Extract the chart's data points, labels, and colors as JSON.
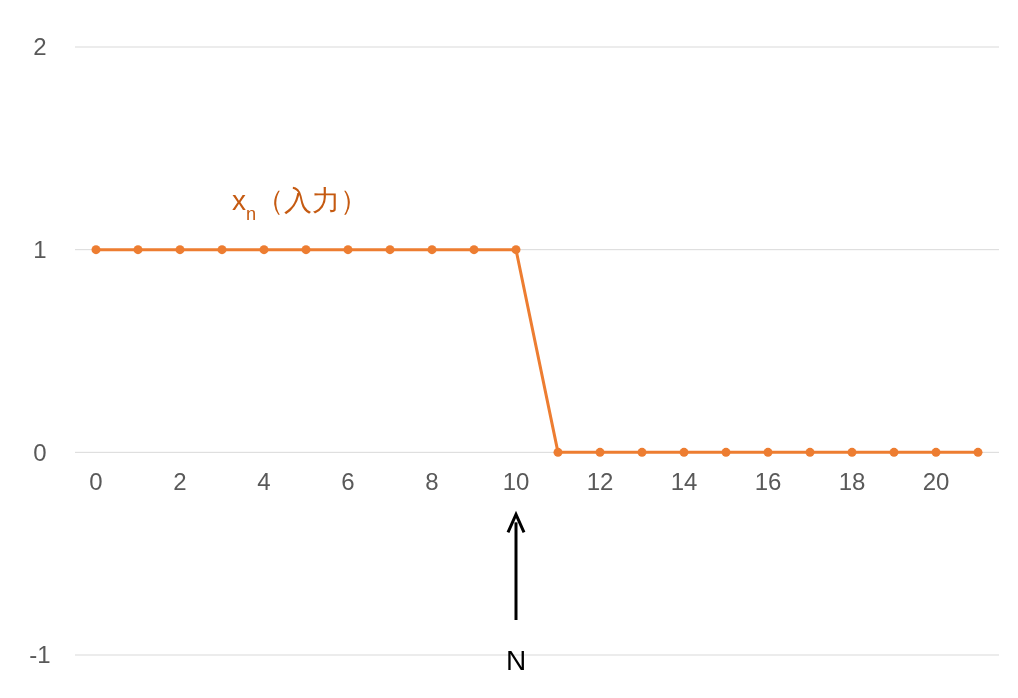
{
  "chart_data": {
    "type": "line",
    "x": [
      0,
      1,
      2,
      3,
      4,
      5,
      6,
      7,
      8,
      9,
      10,
      11,
      12,
      13,
      14,
      15,
      16,
      17,
      18,
      19,
      20,
      21
    ],
    "series": [
      {
        "name": "x$_{n}$（入力）",
        "color": "#ed7d31",
        "values": [
          1,
          1,
          1,
          1,
          1,
          1,
          1,
          1,
          1,
          1,
          1,
          0,
          0,
          0,
          0,
          0,
          0,
          0,
          0,
          0,
          0,
          0
        ]
      }
    ],
    "xlim": [
      -0.5,
      21.5
    ],
    "xticks": [
      0,
      2,
      4,
      6,
      8,
      10,
      12,
      14,
      16,
      18,
      20
    ],
    "ylim": [
      -1,
      2
    ],
    "yticks": [
      -1,
      0,
      1,
      2
    ],
    "grid": "y",
    "marker": "circle",
    "line_style": "solid",
    "annotations": [
      "N"
    ]
  }
}
